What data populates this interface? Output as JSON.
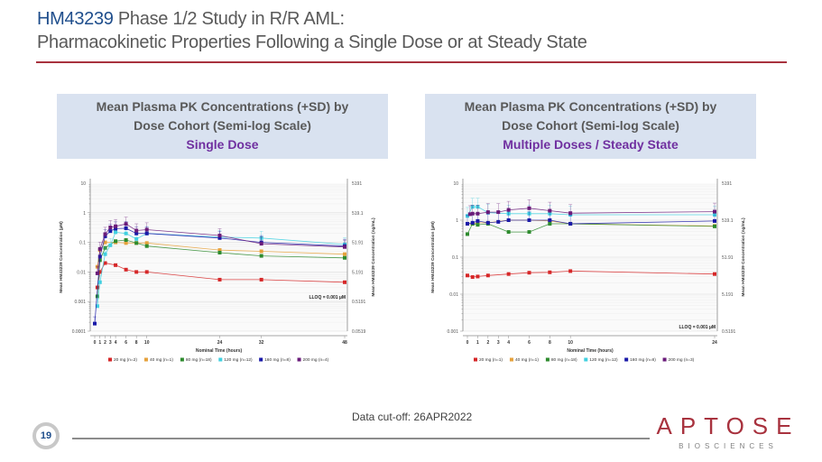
{
  "header": {
    "title_drug": "HM43239",
    "title_rest": " Phase 1/2 Study in R/R AML:",
    "subtitle": "Pharmacokinetic Properties Following a Single Dose or at Steady State"
  },
  "panels": [
    {
      "line1": "Mean Plasma PK Concentrations (+SD) by",
      "line2": "Dose Cohort (Semi-log Scale)",
      "label": "Single Dose"
    },
    {
      "line1": "Mean Plasma PK Concentrations (+SD) by",
      "line2": "Dose Cohort (Semi-log Scale)",
      "label": "Multiple Doses / Steady State"
    }
  ],
  "footer": {
    "page_number": "19",
    "data_cutoff": "Data cut-off: 26APR2022",
    "logo_word": "APTOSE",
    "logo_sub": "BIOSCIENCES"
  },
  "colors": {
    "accent_red": "#a8323e",
    "title_blue": "#1f4e8c",
    "subtitle_purple": "#7030a0",
    "series": [
      "#d62728",
      "#e6a23c",
      "#2e8b2e",
      "#40d0e0",
      "#1a1aa8",
      "#6a1b7a"
    ]
  },
  "chart_data": [
    {
      "type": "line",
      "title": "Single Dose",
      "xlabel": "Nominal Time (hours)",
      "ylabel": "Mean HM43239 Concentration (µM)",
      "ylabel_right": "Mean HM43239 Concentration (ng/mL)",
      "yscale": "log",
      "ylim": [
        0.0001,
        10
      ],
      "yticks": [
        "10",
        "1",
        "0.1",
        "0.01",
        "0.001",
        "0.0001"
      ],
      "yticks_right": [
        "5191",
        "519.1",
        "51.91",
        "5.191",
        "0.5191",
        "0.0519"
      ],
      "xlim": [
        0,
        48
      ],
      "xticks": [
        0,
        1,
        2,
        3,
        4,
        6,
        8,
        10,
        24,
        32,
        48
      ],
      "annotation": "LLOQ = 0.001 µM",
      "grid": true,
      "legend_position": "bottom",
      "series": [
        {
          "name": "20 mg (n=2)",
          "x": [
            0.5,
            1,
            2,
            4,
            6,
            8,
            10,
            24,
            32,
            48
          ],
          "y": [
            0.003,
            0.01,
            0.02,
            0.017,
            0.012,
            0.01,
            0.01,
            0.0055,
            0.0055,
            0.0045
          ]
        },
        {
          "name": "40 mg (n=1)",
          "x": [
            0.5,
            1,
            2,
            4,
            6,
            8,
            10,
            24,
            32,
            48
          ],
          "y": [
            0.015,
            0.055,
            0.1,
            0.1,
            0.095,
            0.095,
            0.095,
            0.055,
            0.05,
            0.04
          ]
        },
        {
          "name": "80 mg (n=18)",
          "x": [
            0.5,
            1,
            2,
            4,
            6,
            8,
            10,
            24,
            32,
            48
          ],
          "y": [
            0.0015,
            0.025,
            0.065,
            0.11,
            0.12,
            0.095,
            0.075,
            0.045,
            0.035,
            0.03
          ]
        },
        {
          "name": "120 mg (n=12)",
          "x": [
            0.5,
            1,
            2,
            3,
            4,
            6,
            8,
            10,
            24,
            32,
            48
          ],
          "y": [
            0.0007,
            0.0045,
            0.04,
            0.08,
            0.22,
            0.2,
            0.13,
            0.2,
            0.15,
            0.14,
            0.085
          ]
        },
        {
          "name": "160 mg (n=8)",
          "x": [
            0,
            1,
            2,
            3,
            4,
            6,
            8,
            10,
            24,
            32,
            48
          ],
          "y": [
            0.00018,
            0.033,
            0.16,
            0.24,
            0.29,
            0.3,
            0.2,
            0.2,
            0.14,
            0.1,
            0.075
          ]
        },
        {
          "name": "200 mg (n=4)",
          "x": [
            0.5,
            1,
            2,
            3,
            4,
            6,
            8,
            10,
            24,
            32,
            48
          ],
          "y": [
            0.009,
            0.06,
            0.19,
            0.32,
            0.35,
            0.42,
            0.25,
            0.27,
            0.17,
            0.09,
            0.07
          ]
        }
      ]
    },
    {
      "type": "line",
      "title": "Multiple Doses / Steady State",
      "xlabel": "Nominal Time (hours)",
      "ylabel": "Mean HM43239 Concentration (µM)",
      "ylabel_right": "Mean HM43239 Concentration (ng/mL)",
      "yscale": "log",
      "ylim": [
        0.001,
        10
      ],
      "yticks": [
        "10",
        "1",
        "0.1",
        "0.01",
        "0.001"
      ],
      "yticks_right": [
        "5191",
        "519.1",
        "51.91",
        "5.191",
        "0.5191"
      ],
      "xlim": [
        0,
        24
      ],
      "xticks": [
        0,
        1,
        2,
        3,
        4,
        6,
        8,
        10,
        24
      ],
      "annotation": "LLOQ = 0.001 µM",
      "grid": true,
      "legend_position": "bottom",
      "series": [
        {
          "name": "20 mg (n=1)",
          "x": [
            0,
            0.5,
            1,
            2,
            4,
            6,
            8,
            10,
            24
          ],
          "y": [
            0.032,
            0.029,
            0.03,
            0.032,
            0.035,
            0.038,
            0.039,
            0.042,
            0.035
          ]
        },
        {
          "name": "40 mg (n=1)",
          "x": [
            0,
            0.5,
            1,
            2,
            4,
            6,
            8,
            10,
            24
          ],
          "y": [
            0.8,
            0.8,
            0.85,
            0.85,
            1.0,
            1.0,
            0.95,
            0.8,
            0.7
          ]
        },
        {
          "name": "80 mg (n=18)",
          "x": [
            0,
            0.5,
            1,
            2,
            4,
            6,
            8,
            10,
            24
          ],
          "y": [
            0.42,
            0.8,
            0.75,
            0.8,
            0.48,
            0.48,
            0.8,
            0.8,
            0.68
          ]
        },
        {
          "name": "120 mg (n=12)",
          "x": [
            0,
            0.5,
            1,
            2,
            4,
            6,
            8,
            10,
            24
          ],
          "y": [
            1.3,
            2.3,
            2.3,
            1.6,
            1.5,
            1.5,
            1.5,
            1.4,
            1.4
          ]
        },
        {
          "name": "160 mg (n=8)",
          "x": [
            0,
            0.5,
            1,
            2,
            3,
            4,
            6,
            8,
            10,
            24
          ],
          "y": [
            0.8,
            0.85,
            0.95,
            0.85,
            0.9,
            1.0,
            1.0,
            1.0,
            0.8,
            0.95
          ]
        },
        {
          "name": "200 mg (n=3)",
          "x": [
            0.25,
            0.5,
            1,
            2,
            3,
            4,
            6,
            8,
            10,
            24
          ],
          "y": [
            1.45,
            1.5,
            1.5,
            1.65,
            1.65,
            1.9,
            2.1,
            1.8,
            1.55,
            1.7
          ]
        }
      ]
    }
  ]
}
